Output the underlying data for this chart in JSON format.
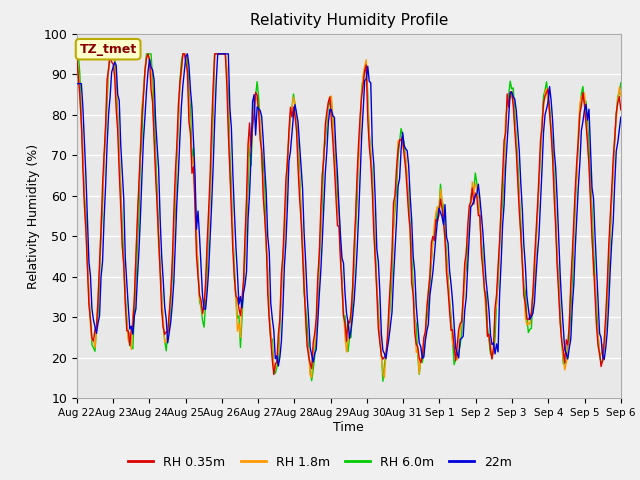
{
  "title": "Relativity Humidity Profile",
  "xlabel": "Time",
  "ylabel": "Relativity Humidity (%)",
  "ylim": [
    10,
    100
  ],
  "background_color": "#f0f0f0",
  "plot_bg_color": "#e8e8e8",
  "colors": {
    "RH 0.35m": "#dd0000",
    "RH 1.8m": "#ff9900",
    "RH 6.0m": "#00cc00",
    "22m": "#0000dd"
  },
  "legend_labels": [
    "RH 0.35m",
    "RH 1.8m",
    "RH 6.0m",
    "22m"
  ],
  "annotation_text": "TZ_tmet",
  "annotation_bg": "#ffffcc",
  "annotation_border": "#bbaa00",
  "annotation_text_color": "#880000",
  "gridcolor": "#ffffff",
  "linewidth": 1.0,
  "tick_dates": [
    "Aug 22",
    "Aug 23",
    "Aug 24",
    "Aug 25",
    "Aug 26",
    "Aug 27",
    "Aug 28",
    "Aug 29",
    "Aug 30",
    "Aug 31",
    "Sep 1",
    "Sep 2",
    "Sep 3",
    "Sep 4",
    "Sep 5",
    "Sep 6"
  ]
}
